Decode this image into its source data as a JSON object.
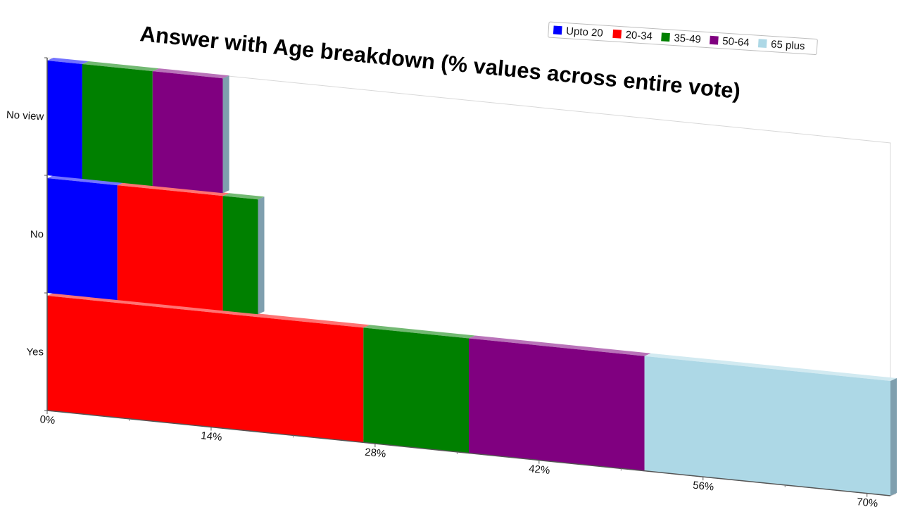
{
  "chart_data": {
    "type": "bar",
    "orientation": "horizontal",
    "stacked": true,
    "title": "Answer with Age breakdown (% values across entire vote)",
    "xlabel": "",
    "ylabel": "",
    "categories": [
      "Yes",
      "No",
      "No view"
    ],
    "series": [
      {
        "name": "Upto 20",
        "color": "#0000ff",
        "values": [
          0,
          6,
          3
        ]
      },
      {
        "name": "20-34",
        "color": "#ff0000",
        "values": [
          27,
          9,
          0
        ]
      },
      {
        "name": "35-49",
        "color": "#008000",
        "values": [
          9,
          3,
          6
        ]
      },
      {
        "name": "50-64",
        "color": "#800080",
        "values": [
          15,
          0,
          6
        ]
      },
      {
        "name": "65 plus",
        "color": "#add8e6",
        "values": [
          21,
          0,
          0
        ]
      }
    ],
    "x_ticks": [
      "0%",
      "14%",
      "28%",
      "42%",
      "56%",
      "70%"
    ],
    "xlim": [
      0,
      72
    ],
    "grid": false,
    "legend_position": "top-right"
  }
}
